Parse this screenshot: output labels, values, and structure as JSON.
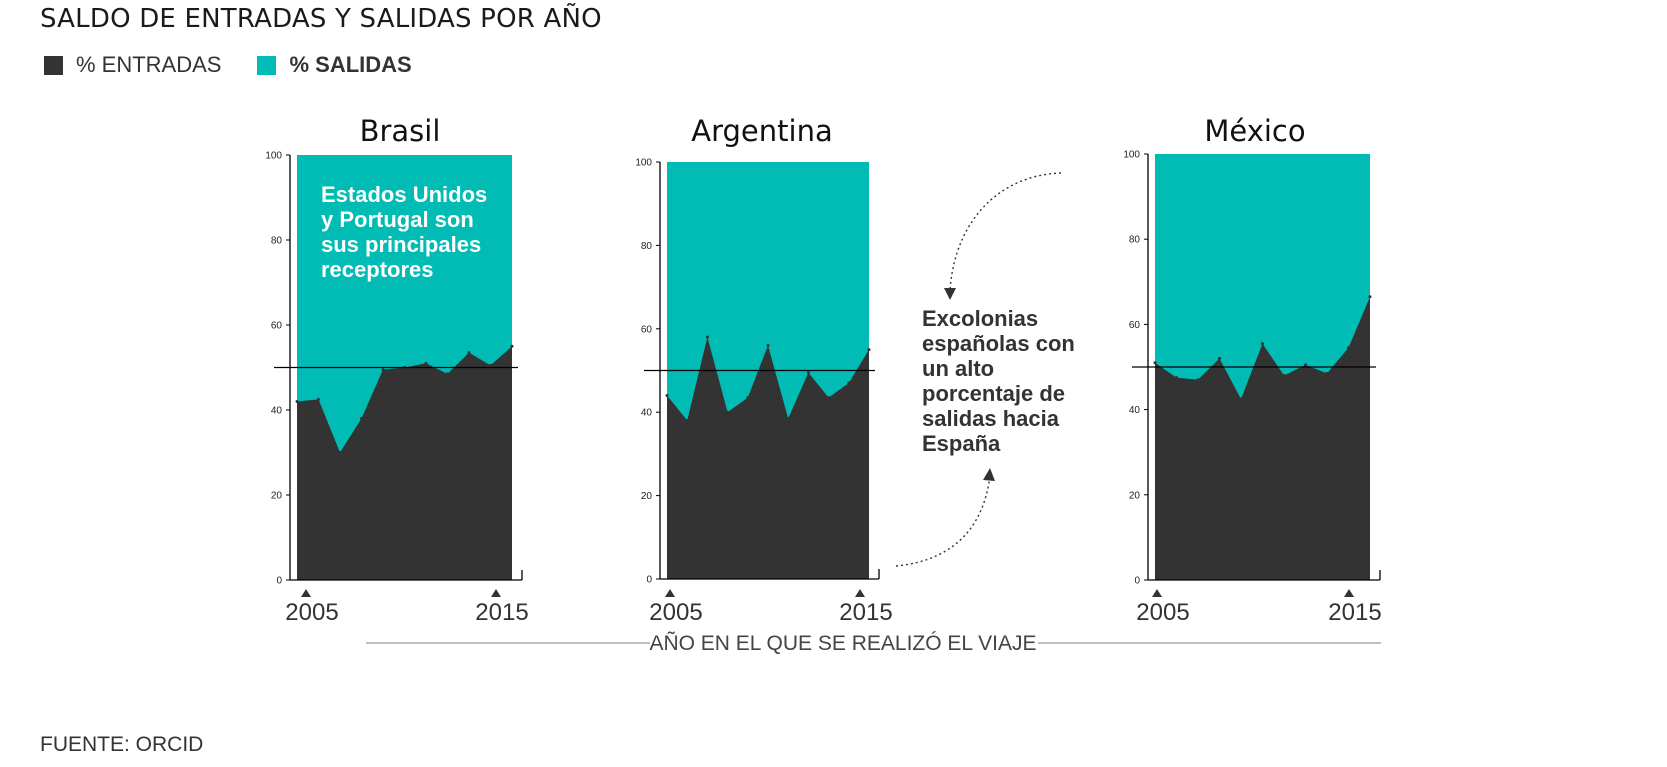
{
  "title": "SALDO DE ENTRADAS Y SALIDAS POR AÑO",
  "legend": [
    {
      "label": "% ENTRADAS",
      "color": "#333333"
    },
    {
      "label": "% SALIDAS",
      "color": "#00bcb4"
    }
  ],
  "source": "FUENTE: ORCID",
  "xaxis_title": "AÑO EN EL QUE SE REALIZÓ EL VIAJE",
  "annotations": {
    "brasil": [
      "Estados Unidos",
      "y Portugal son",
      "sus principales",
      "receptores"
    ],
    "middle": [
      "Excolonias",
      "españolas con",
      "un alto",
      "porcentaje de",
      "salidas hacia",
      "España"
    ]
  },
  "chart_data": [
    {
      "type": "area",
      "title": "Brasil",
      "x": [
        2005,
        2006,
        2007,
        2008,
        2009,
        2010,
        2011,
        2012,
        2013,
        2014,
        2015
      ],
      "series": [
        {
          "name": "% ENTRADAS",
          "values": [
            42,
            42.5,
            30,
            38,
            49.5,
            50,
            51,
            48.5,
            53.5,
            50.5,
            55
          ]
        },
        {
          "name": "% SALIDAS",
          "values": [
            58,
            57.5,
            70,
            62,
            50.5,
            50,
            49,
            51.5,
            46.5,
            49.5,
            45
          ]
        }
      ],
      "reference_line": 50,
      "ylim": [
        0,
        100
      ],
      "yticks": [
        0,
        20,
        40,
        60,
        80,
        100
      ],
      "xtick_labels": [
        "2005",
        "2015"
      ]
    },
    {
      "type": "area",
      "title": "Argentina",
      "x": [
        2005,
        2006,
        2007,
        2008,
        2009,
        2010,
        2011,
        2012,
        2013,
        2014,
        2015
      ],
      "series": [
        {
          "name": "% ENTRADAS",
          "values": [
            44,
            38,
            58,
            40,
            43.5,
            56,
            38.5,
            49.5,
            43.5,
            47,
            55
          ]
        },
        {
          "name": "% SALIDAS",
          "values": [
            56,
            62,
            42,
            60,
            56.5,
            44,
            61.5,
            50.5,
            56.5,
            53,
            45
          ]
        }
      ],
      "reference_line": 50,
      "ylim": [
        0,
        100
      ],
      "yticks": [
        0,
        20,
        40,
        60,
        80,
        100
      ],
      "xtick_labels": [
        "2005",
        "2015"
      ]
    },
    {
      "type": "area",
      "title": "México",
      "x": [
        2005,
        2006,
        2007,
        2008,
        2009,
        2010,
        2011,
        2012,
        2013,
        2014,
        2015
      ],
      "series": [
        {
          "name": "% ENTRADAS",
          "values": [
            51,
            47.5,
            47,
            52,
            42.5,
            55.5,
            48,
            50.5,
            48.5,
            54.5,
            66.5
          ]
        },
        {
          "name": "% SALIDAS",
          "values": [
            49,
            52.5,
            53,
            48,
            57.5,
            44.5,
            52,
            49.5,
            51.5,
            45.5,
            33.5
          ]
        }
      ],
      "reference_line": 50,
      "ylim": [
        0,
        100
      ],
      "yticks": [
        0,
        20,
        40,
        60,
        80,
        100
      ],
      "xtick_labels": [
        "2005",
        "2015"
      ]
    }
  ]
}
